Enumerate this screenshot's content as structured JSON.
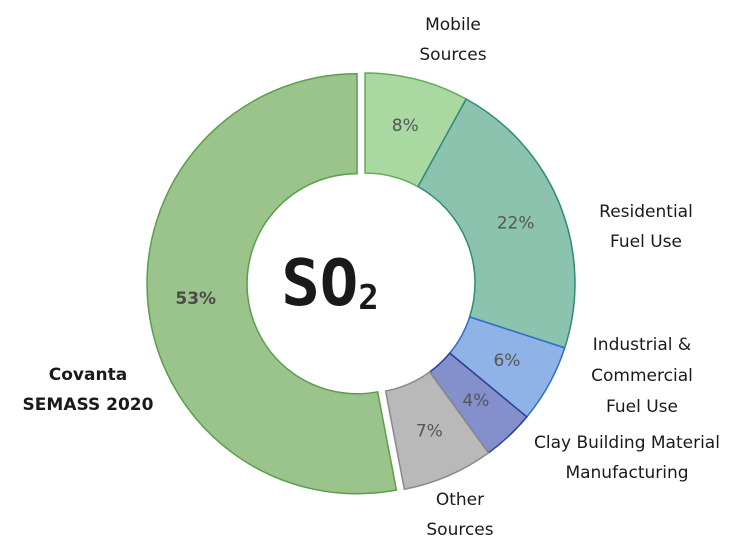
{
  "chart_data": {
    "type": "donut",
    "center_label": {
      "text": "SO",
      "subscript": "2"
    },
    "categories": [
      [
        "Mobile",
        "Sources"
      ],
      [
        "Residential",
        "Fuel Use"
      ],
      [
        "Industrial &",
        "Commercial",
        "Fuel Use"
      ],
      [
        "Clay Building Material",
        "Manufacturing"
      ],
      [
        "Other",
        "Sources"
      ],
      [
        "Covanta",
        "SEMASS 2020"
      ]
    ],
    "values": [
      8,
      22,
      6,
      4,
      7,
      53
    ],
    "value_labels": [
      "8%",
      "22%",
      "6%",
      "4%",
      "7%",
      "53%"
    ],
    "colors": [
      "#a9d9a1",
      "#8cc3af",
      "#8fb3e6",
      "#8390cc",
      "#b9b9b9",
      "#9ac48c"
    ],
    "edge_colors": [
      "#5fae55",
      "#2e8a7a",
      "#2f6fc8",
      "#2a3f9a",
      "#8a8a8a",
      "#5a9e4c"
    ],
    "highlight": 5
  }
}
